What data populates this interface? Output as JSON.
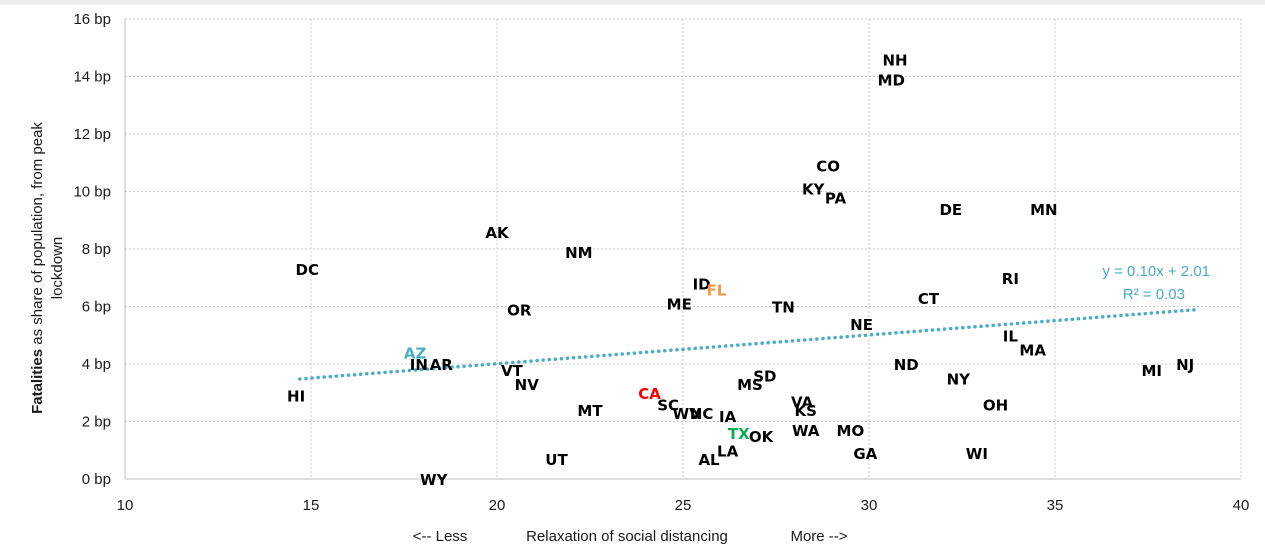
{
  "chart_data": {
    "type": "scatter",
    "y_title_bold": "Fatalities",
    "y_title_rest": " as share of population, from peak",
    "y_title_line2": "lockdown",
    "xlabel_left": "<-- Less",
    "xlabel_center": "Relaxation of social distancing",
    "xlabel_right": "More -->",
    "xlim": [
      10,
      40
    ],
    "ylim": [
      0,
      16
    ],
    "x_ticks": [
      10,
      15,
      20,
      25,
      30,
      35,
      40
    ],
    "x_tick_labels": [
      "10",
      "15",
      "20",
      "25",
      "30",
      "35",
      "40"
    ],
    "y_ticks": [
      0,
      2,
      4,
      6,
      8,
      10,
      12,
      14,
      16
    ],
    "y_tick_labels": [
      "0 bp",
      "2 bp",
      "4 bp",
      "6 bp",
      "8 bp",
      "10 bp",
      "12 bp",
      "14 bp",
      "16 bp"
    ],
    "grid": true,
    "default_color": "#000000",
    "highlight_colors": {
      "CA": "#ff0000",
      "FL": "#f79646",
      "TX": "#00b050",
      "AZ": "#4bacc6"
    },
    "points": [
      {
        "label": "NH",
        "x": 30.7,
        "y": 14.6
      },
      {
        "label": "MD",
        "x": 30.6,
        "y": 13.9
      },
      {
        "label": "CO",
        "x": 28.9,
        "y": 10.9
      },
      {
        "label": "KY",
        "x": 28.5,
        "y": 10.1
      },
      {
        "label": "PA",
        "x": 29.1,
        "y": 9.8
      },
      {
        "label": "DE",
        "x": 32.2,
        "y": 9.4
      },
      {
        "label": "MN",
        "x": 34.7,
        "y": 9.4
      },
      {
        "label": "AK",
        "x": 20.0,
        "y": 8.6
      },
      {
        "label": "NM",
        "x": 22.2,
        "y": 7.9
      },
      {
        "label": "DC",
        "x": 14.9,
        "y": 7.3
      },
      {
        "label": "RI",
        "x": 33.8,
        "y": 7.0
      },
      {
        "label": "ID",
        "x": 25.5,
        "y": 6.8
      },
      {
        "label": "FL",
        "x": 25.9,
        "y": 6.6
      },
      {
        "label": "CT",
        "x": 31.6,
        "y": 6.3
      },
      {
        "label": "ME",
        "x": 24.9,
        "y": 6.1
      },
      {
        "label": "TN",
        "x": 27.7,
        "y": 6.0
      },
      {
        "label": "OR",
        "x": 20.6,
        "y": 5.9
      },
      {
        "label": "NE",
        "x": 29.8,
        "y": 5.4
      },
      {
        "label": "IL",
        "x": 33.8,
        "y": 5.0
      },
      {
        "label": "MA",
        "x": 34.4,
        "y": 4.5
      },
      {
        "label": "AZ",
        "x": 17.8,
        "y": 4.4
      },
      {
        "label": "IN",
        "x": 17.9,
        "y": 4.0
      },
      {
        "label": "AR",
        "x": 18.5,
        "y": 4.0
      },
      {
        "label": "ND",
        "x": 31.0,
        "y": 4.0
      },
      {
        "label": "NJ",
        "x": 38.5,
        "y": 4.0
      },
      {
        "label": "MI",
        "x": 37.6,
        "y": 3.8
      },
      {
        "label": "VT",
        "x": 20.4,
        "y": 3.8
      },
      {
        "label": "SD",
        "x": 27.2,
        "y": 3.6
      },
      {
        "label": "NY",
        "x": 32.4,
        "y": 3.5
      },
      {
        "label": "NV",
        "x": 20.8,
        "y": 3.3
      },
      {
        "label": "MS",
        "x": 26.8,
        "y": 3.3
      },
      {
        "label": "CA",
        "x": 24.1,
        "y": 3.0
      },
      {
        "label": "HI",
        "x": 14.6,
        "y": 2.9
      },
      {
        "label": "VA",
        "x": 28.2,
        "y": 2.7
      },
      {
        "label": "SC",
        "x": 24.6,
        "y": 2.6
      },
      {
        "label": "OH",
        "x": 33.4,
        "y": 2.6
      },
      {
        "label": "MT",
        "x": 22.5,
        "y": 2.4
      },
      {
        "label": "KS",
        "x": 28.3,
        "y": 2.4
      },
      {
        "label": "WV",
        "x": 25.1,
        "y": 2.3
      },
      {
        "label": "NC",
        "x": 25.5,
        "y": 2.3
      },
      {
        "label": "IA",
        "x": 26.2,
        "y": 2.2
      },
      {
        "label": "WA",
        "x": 28.3,
        "y": 1.7
      },
      {
        "label": "MO",
        "x": 29.5,
        "y": 1.7
      },
      {
        "label": "TX",
        "x": 26.5,
        "y": 1.6
      },
      {
        "label": "OK",
        "x": 27.1,
        "y": 1.5
      },
      {
        "label": "LA",
        "x": 26.2,
        "y": 1.0
      },
      {
        "label": "GA",
        "x": 29.9,
        "y": 0.9
      },
      {
        "label": "WI",
        "x": 32.9,
        "y": 0.9
      },
      {
        "label": "AL",
        "x": 25.7,
        "y": 0.7
      },
      {
        "label": "UT",
        "x": 21.6,
        "y": 0.7
      },
      {
        "label": "WY",
        "x": 18.3,
        "y": 0.0
      }
    ],
    "trendline": {
      "x_start": 14.7,
      "x_end": 38.8,
      "slope": 0.1,
      "intercept": 2.01,
      "color": "#4bacc6",
      "equation": "y = 0.10x + 2.01",
      "r2": "R² = 0.03"
    }
  }
}
